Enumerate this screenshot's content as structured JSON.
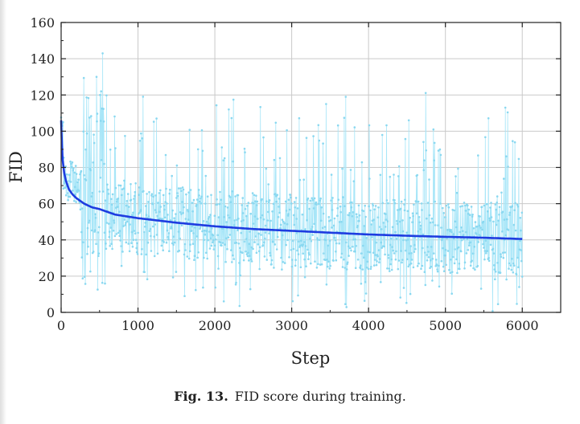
{
  "caption": {
    "label": "Fig. 13.",
    "text": "FID score during training."
  },
  "chart_data": {
    "type": "line",
    "xlabel": "Step",
    "ylabel": "FID",
    "xlim": [
      0,
      6500
    ],
    "ylim": [
      0,
      160
    ],
    "xticks": [
      0,
      1000,
      2000,
      3000,
      4000,
      5000,
      6000
    ],
    "yticks": [
      0,
      20,
      40,
      60,
      80,
      100,
      120,
      140,
      160
    ],
    "grid": true,
    "colors": {
      "raw": "#a8e6f8",
      "raw_marker": "#8ad8f0",
      "trend": "#1e3ce0"
    },
    "series": [
      {
        "x": [
          0,
          10,
          20,
          40,
          60,
          100,
          150,
          200,
          300,
          400,
          500,
          700,
          1000,
          1500,
          2000,
          2500,
          3000,
          3500,
          4000,
          4500,
          5000,
          5500,
          6000
        ],
        "values": [
          106,
          92,
          84,
          77,
          73,
          68,
          65,
          63,
          60,
          58,
          57,
          54,
          52,
          49.5,
          47.5,
          46,
          45,
          44,
          43,
          42.3,
          41.7,
          41.2,
          40.5
        ]
      },
      {
        "style": "scatter-line",
        "point_count": 1200,
        "x_range": [
          0,
          6000
        ],
        "value_range": [
          0,
          143
        ]
      }
    ]
  }
}
